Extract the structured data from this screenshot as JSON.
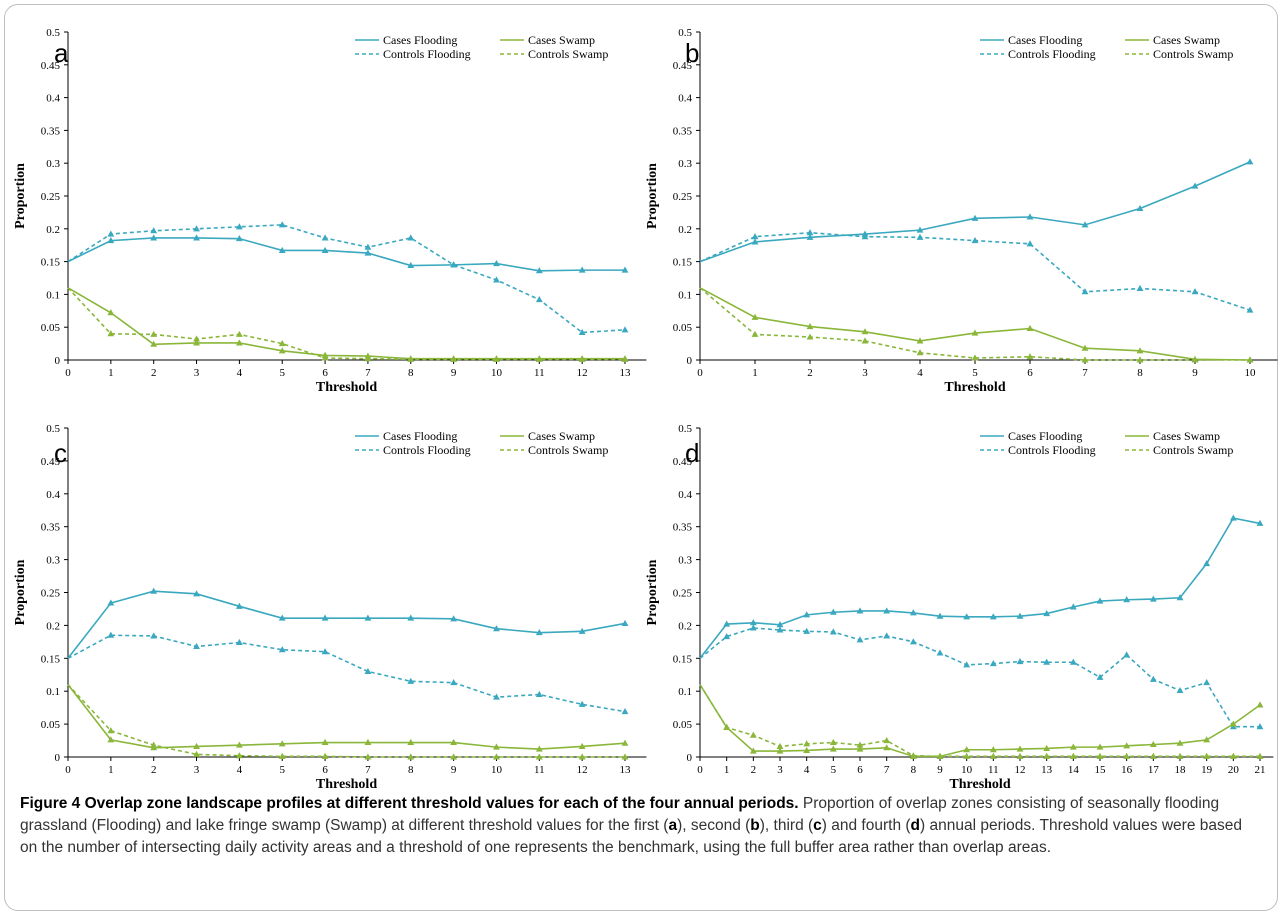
{
  "colors": {
    "flooding": "#3aa8bf",
    "swamp": "#8ab63a",
    "border": "#bfbfbf"
  },
  "legend": {
    "cases_flooding": "Cases Flooding",
    "cases_swamp": "Cases Swamp",
    "controls_flooding": "Controls Flooding",
    "controls_swamp": "Controls Swamp"
  },
  "caption": {
    "title": "Figure 4 Overlap zone landscape profiles at different threshold values for each of the four annual periods.",
    "text_1": " Proportion of overlap zones consisting of seasonally flooding grassland (Flooding) and lake fringe swamp (Swamp) at different threshold values for the first (",
    "a": "a",
    "text_2": "), second (",
    "b": "b",
    "text_3": "), third (",
    "c": "c",
    "text_4": ") and fourth (",
    "d": "d",
    "text_5": ") annual periods. Threshold values were based on the number of intersecting daily activity areas and a threshold of one represents the benchmark, using the full buffer area rather than overlap areas."
  },
  "chart_data": [
    {
      "type": "line",
      "panel": "a",
      "xlabel": "Threshold",
      "ylabel": "Proportion",
      "ylim": [
        0,
        0.5
      ],
      "yticks": [
        "0",
        "0.05",
        "0.1",
        "0.15",
        "0.2",
        "0.25",
        "0.3",
        "0.35",
        "0.4",
        "0.45",
        "0.5"
      ],
      "x": [
        0,
        1,
        2,
        3,
        4,
        5,
        6,
        7,
        8,
        9,
        10,
        11,
        12,
        13
      ],
      "series": [
        {
          "name": "Cases Flooding",
          "values": [
            0.15,
            0.182,
            0.186,
            0.186,
            0.185,
            0.167,
            0.167,
            0.163,
            0.144,
            0.145,
            0.147,
            0.136,
            0.137,
            0.137
          ]
        },
        {
          "name": "Controls Flooding",
          "values": [
            0.15,
            0.192,
            0.197,
            0.2,
            0.203,
            0.206,
            0.186,
            0.172,
            0.186,
            0.145,
            0.122,
            0.092,
            0.042,
            0.046
          ]
        },
        {
          "name": "Cases Swamp",
          "values": [
            0.11,
            0.072,
            0.024,
            0.026,
            0.026,
            0.014,
            0.007,
            0.006,
            0.002,
            0.002,
            0.002,
            0.002,
            0.002,
            0.002
          ]
        },
        {
          "name": "Controls Swamp",
          "values": [
            0.11,
            0.04,
            0.039,
            0.032,
            0.039,
            0.025,
            0.003,
            0.002,
            0.001,
            0.001,
            0.001,
            0.001,
            0.001,
            0.001
          ]
        }
      ]
    },
    {
      "type": "line",
      "panel": "b",
      "xlabel": "Threshold",
      "ylabel": "Proportion",
      "ylim": [
        0,
        0.5
      ],
      "yticks": [
        "0",
        "0.05",
        "0.1",
        "0.15",
        "0.2",
        "0.25",
        "0.3",
        "0.35",
        "0.4",
        "0.45",
        "0.5"
      ],
      "x": [
        0,
        1,
        2,
        3,
        4,
        5,
        6,
        7,
        8,
        9,
        10
      ],
      "series": [
        {
          "name": "Cases Flooding",
          "values": [
            0.15,
            0.18,
            0.187,
            0.192,
            0.198,
            0.216,
            0.218,
            0.206,
            0.231,
            0.265,
            0.302
          ]
        },
        {
          "name": "Controls Flooding",
          "values": [
            0.15,
            0.188,
            0.194,
            0.188,
            0.187,
            0.182,
            0.177,
            0.104,
            0.109,
            0.104,
            0.076
          ]
        },
        {
          "name": "Cases Swamp",
          "values": [
            0.11,
            0.065,
            0.051,
            0.043,
            0.029,
            0.041,
            0.048,
            0.018,
            0.014,
            0.001,
            0.0
          ]
        },
        {
          "name": "Controls Swamp",
          "values": [
            0.11,
            0.039,
            0.035,
            0.029,
            0.011,
            0.003,
            0.005,
            0.0,
            0.0,
            0.0,
            0.0
          ]
        }
      ]
    },
    {
      "type": "line",
      "panel": "c",
      "xlabel": "Threshold",
      "ylabel": "Proportion",
      "ylim": [
        0,
        0.5
      ],
      "yticks": [
        "0",
        "0.05",
        "0.1",
        "0.15",
        "0.2",
        "0.25",
        "0.3",
        "0.35",
        "0.4",
        "0.45",
        "0.5"
      ],
      "x": [
        0,
        1,
        2,
        3,
        4,
        5,
        6,
        7,
        8,
        9,
        10,
        11,
        12,
        13
      ],
      "series": [
        {
          "name": "Cases Flooding",
          "values": [
            0.15,
            0.234,
            0.252,
            0.248,
            0.229,
            0.211,
            0.211,
            0.211,
            0.211,
            0.21,
            0.195,
            0.189,
            0.191,
            0.203
          ]
        },
        {
          "name": "Controls Flooding",
          "values": [
            0.15,
            0.185,
            0.184,
            0.168,
            0.174,
            0.163,
            0.16,
            0.13,
            0.115,
            0.113,
            0.091,
            0.095,
            0.08,
            0.069
          ]
        },
        {
          "name": "Cases Swamp",
          "values": [
            0.11,
            0.026,
            0.014,
            0.016,
            0.018,
            0.02,
            0.022,
            0.022,
            0.022,
            0.022,
            0.015,
            0.012,
            0.016,
            0.021
          ]
        },
        {
          "name": "Controls Swamp",
          "values": [
            0.11,
            0.04,
            0.018,
            0.004,
            0.002,
            0.001,
            0.001,
            0.0,
            0.0,
            0.0,
            0.0,
            0.0,
            0.0,
            0.0
          ]
        }
      ]
    },
    {
      "type": "line",
      "panel": "d",
      "xlabel": "Threshold",
      "ylabel": "Proportion",
      "ylim": [
        0,
        0.5
      ],
      "yticks": [
        "0",
        "0.05",
        "0.1",
        "0.15",
        "0.2",
        "0.25",
        "0.3",
        "0.35",
        "0.4",
        "0.45",
        "0.5"
      ],
      "x": [
        0,
        1,
        2,
        3,
        4,
        5,
        6,
        7,
        8,
        9,
        10,
        11,
        12,
        13,
        14,
        15,
        16,
        17,
        18,
        19,
        20,
        21
      ],
      "series": [
        {
          "name": "Cases Flooding",
          "values": [
            0.15,
            0.202,
            0.204,
            0.201,
            0.216,
            0.22,
            0.222,
            0.222,
            0.219,
            0.214,
            0.213,
            0.213,
            0.214,
            0.218,
            0.228,
            0.237,
            0.239,
            0.24,
            0.242,
            0.294,
            0.363,
            0.355
          ]
        },
        {
          "name": "Controls Flooding",
          "values": [
            0.15,
            0.183,
            0.196,
            0.193,
            0.191,
            0.19,
            0.178,
            0.184,
            0.175,
            0.158,
            0.14,
            0.142,
            0.145,
            0.144,
            0.144,
            0.121,
            0.155,
            0.118,
            0.101,
            0.113,
            0.046,
            0.046
          ]
        },
        {
          "name": "Cases Swamp",
          "values": [
            0.11,
            0.045,
            0.009,
            0.009,
            0.01,
            0.012,
            0.012,
            0.014,
            0.001,
            0.001,
            0.011,
            0.011,
            0.012,
            0.013,
            0.015,
            0.015,
            0.017,
            0.019,
            0.021,
            0.026,
            0.05,
            0.079
          ]
        },
        {
          "name": "Controls Swamp",
          "values": [
            0.11,
            0.045,
            0.033,
            0.016,
            0.02,
            0.022,
            0.018,
            0.025,
            0.002,
            0.001,
            0.001,
            0.001,
            0.001,
            0.001,
            0.001,
            0.001,
            0.001,
            0.001,
            0.001,
            0.001,
            0.001,
            0.001
          ]
        }
      ]
    }
  ]
}
